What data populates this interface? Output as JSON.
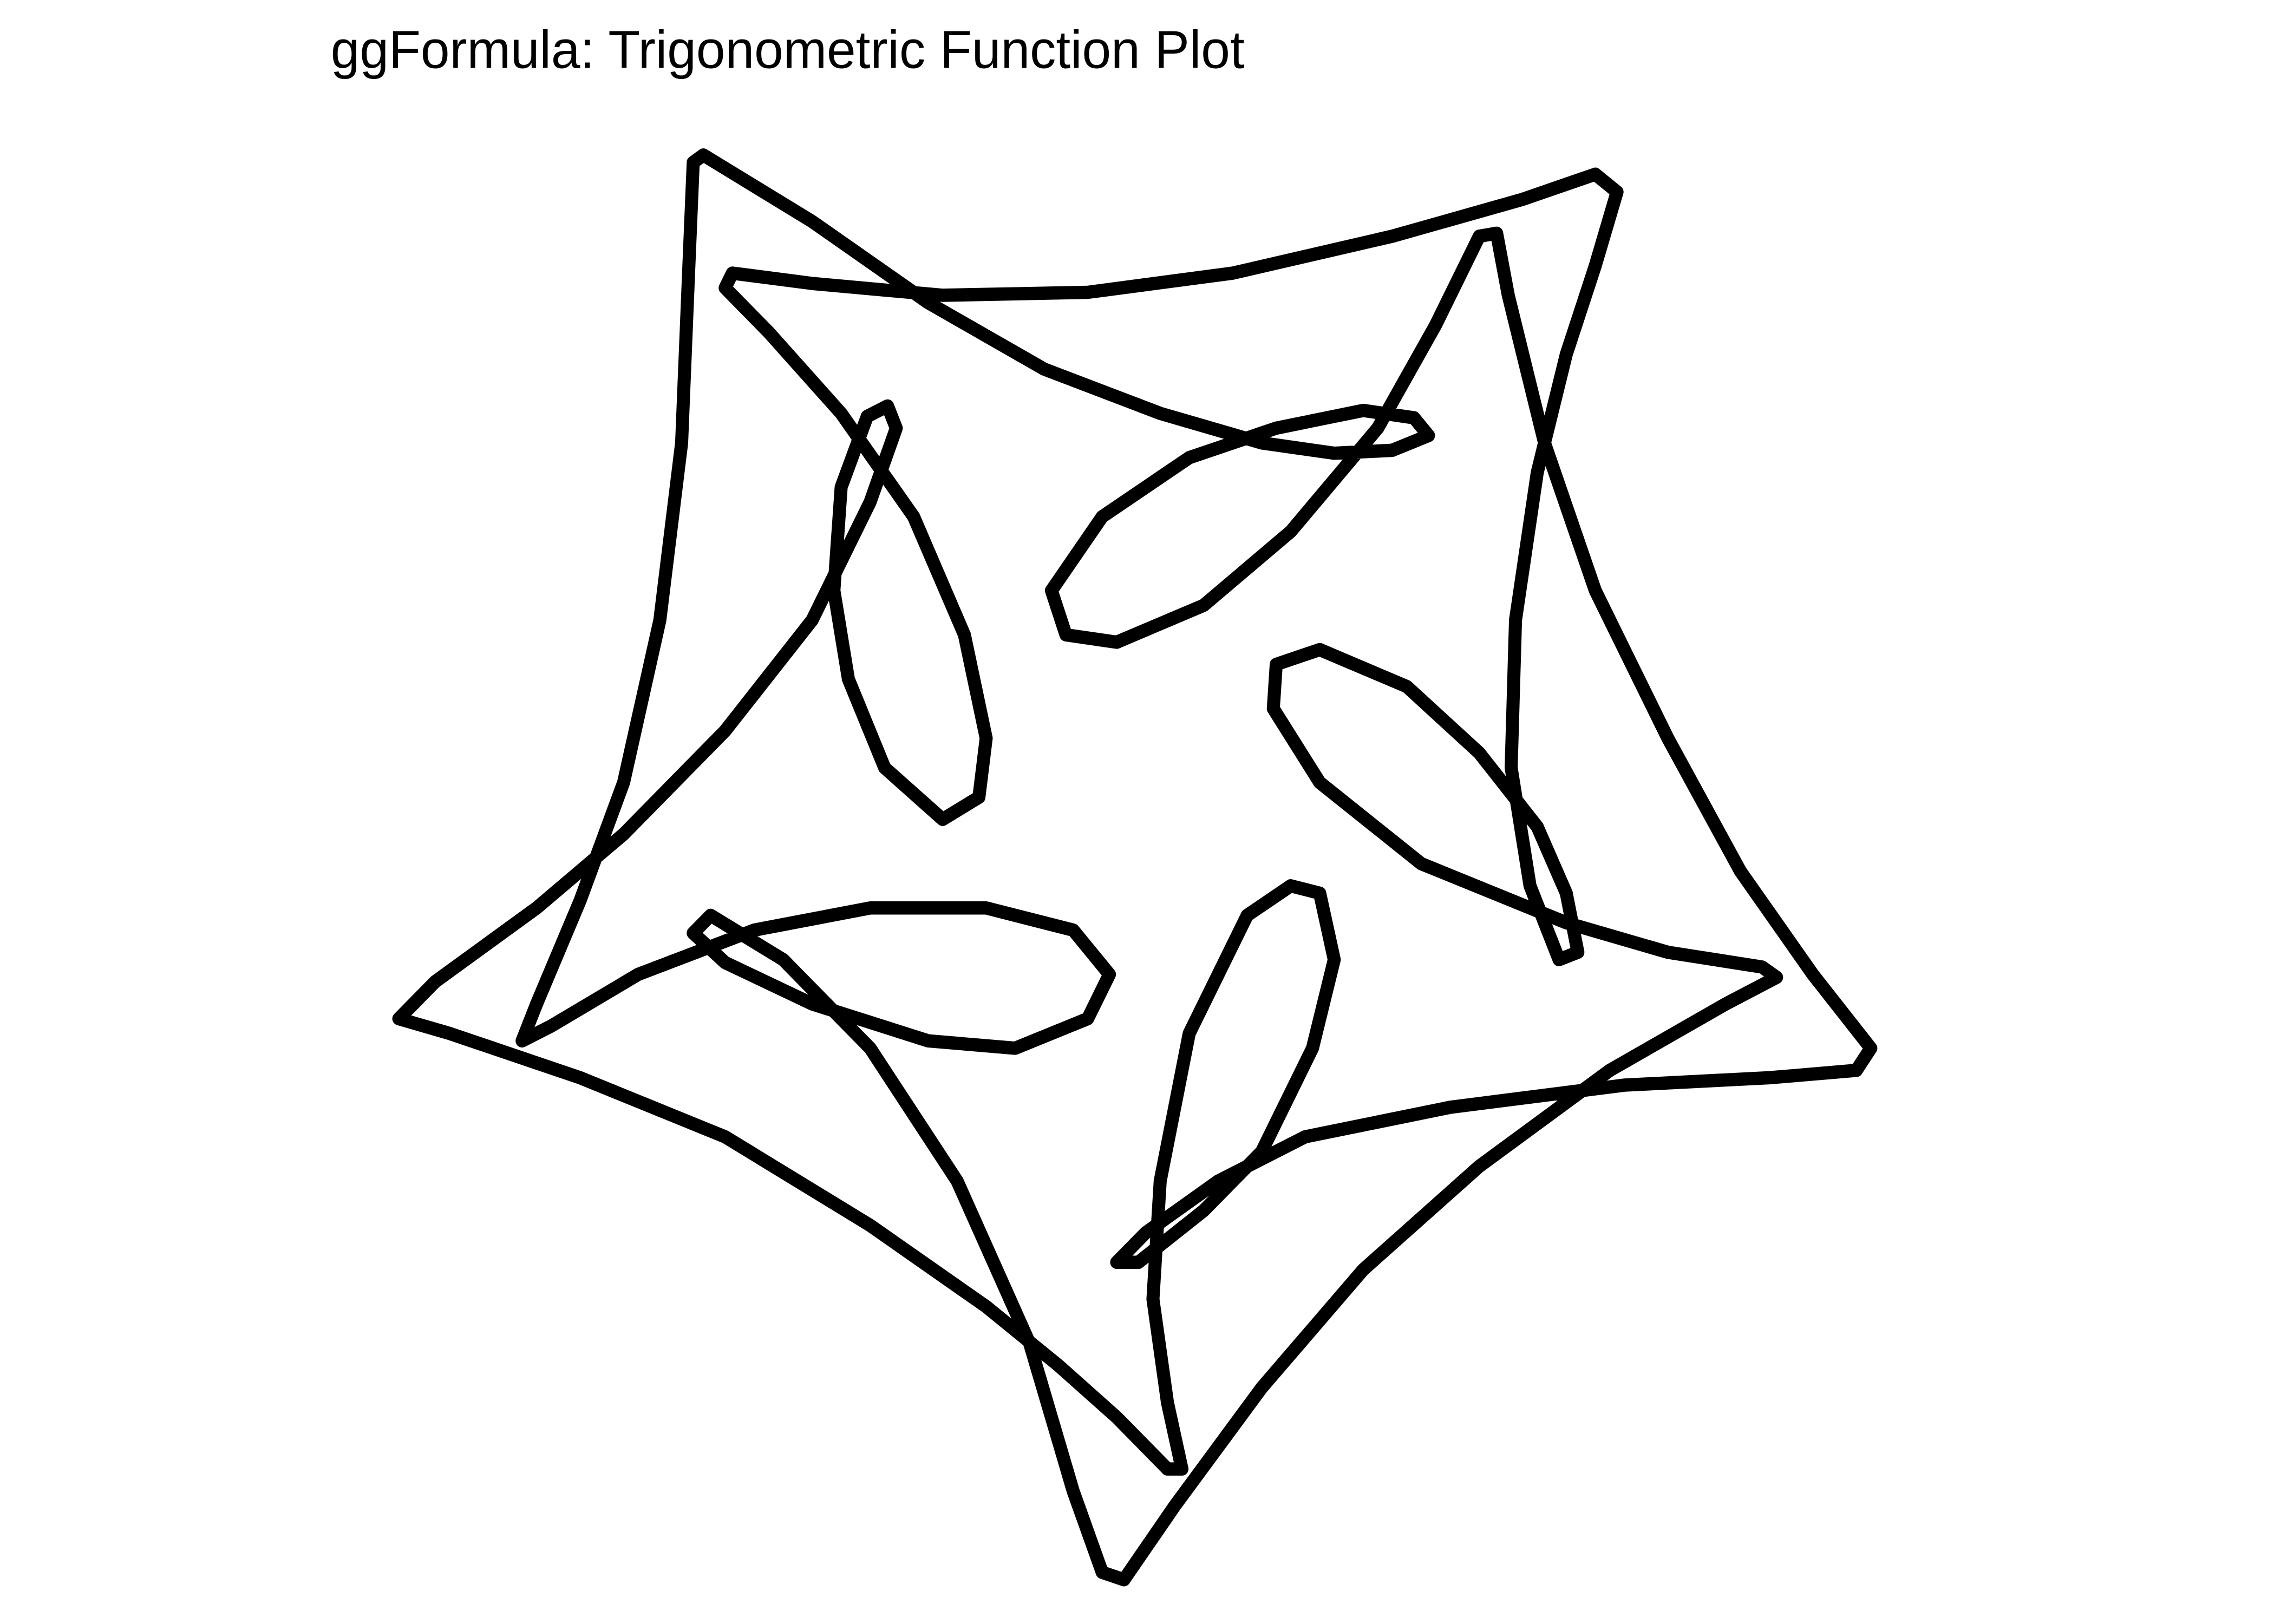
{
  "chart_data": {
    "type": "line",
    "title": "ggFormula: Trigonometric Function Plot",
    "color": "#000000",
    "xlim": [
      0,
      1568
    ],
    "ylim": [
      1100,
      0
    ],
    "x": [
      485,
      560,
      640,
      720,
      800,
      870,
      920,
      960,
      985,
      975,
      940,
      880,
      820,
      760,
      725,
      735,
      770,
      830,
      890,
      950,
      990,
      1020,
      1032,
      1040,
      1065,
      1100,
      1150,
      1200,
      1250,
      1290,
      1280,
      1220,
      1120,
      1000,
      900,
      840,
      790,
      770,
      785,
      830,
      870,
      905,
      920,
      910,
      890,
      860,
      820,
      800,
      795,
      805,
      815,
      805,
      770,
      730,
      680,
      600,
      500,
      400,
      310,
      275,
      300,
      370,
      430,
      500,
      560,
      600,
      618,
      612,
      598,
      580,
      575,
      585,
      610,
      650,
      675,
      680,
      665,
      630,
      580,
      530,
      500,
      505,
      560,
      650,
      750,
      850,
      960,
      1050,
      1100,
      1115,
      1100,
      1080,
      1060,
      1045,
      1042,
      1055,
      1075,
      1088,
      1080,
      1060,
      1020,
      970,
      910,
      880,
      878,
      910,
      980,
      1080,
      1150,
      1215,
      1225,
      1190,
      1110,
      1020,
      940,
      870,
      810,
      775,
      760,
      740,
      710,
      660,
      600,
      540,
      490,
      478,
      500,
      560,
      640,
      700,
      750,
      765,
      740,
      680,
      600,
      520,
      440,
      380,
      360,
      370,
      400,
      430,
      455,
      470,
      475,
      478,
      485
    ],
    "values": [
      105,
      150,
      205,
      250,
      280,
      300,
      307,
      305,
      295,
      283,
      278,
      290,
      310,
      350,
      400,
      430,
      435,
      410,
      360,
      290,
      220,
      160,
      158,
      200,
      300,
      400,
      500,
      590,
      660,
      710,
      725,
      730,
      735,
      750,
      770,
      800,
      835,
      855,
      855,
      820,
      780,
      710,
      650,
      605,
      600,
      620,
      700,
      800,
      880,
      950,
      995,
      995,
      960,
      925,
      885,
      830,
      770,
      730,
      700,
      690,
      665,
      615,
      565,
      495,
      420,
      340,
      290,
      275,
      282,
      330,
      400,
      460,
      520,
      555,
      540,
      500,
      430,
      350,
      280,
      225,
      195,
      185,
      192,
      200,
      198,
      185,
      160,
      135,
      118,
      130,
      180,
      240,
      320,
      420,
      520,
      600,
      650,
      645,
      605,
      560,
      510,
      465,
      440,
      450,
      480,
      530,
      585,
      625,
      645,
      655,
      662,
      680,
      725,
      790,
      860,
      940,
      1020,
      1070,
      1065,
      1010,
      910,
      800,
      710,
      650,
      620,
      632,
      652,
      680,
      705,
      710,
      690,
      660,
      630,
      615,
      615,
      630,
      660,
      695,
      705,
      680,
      610,
      530,
      420,
      300,
      180,
      110,
      105
    ]
  }
}
